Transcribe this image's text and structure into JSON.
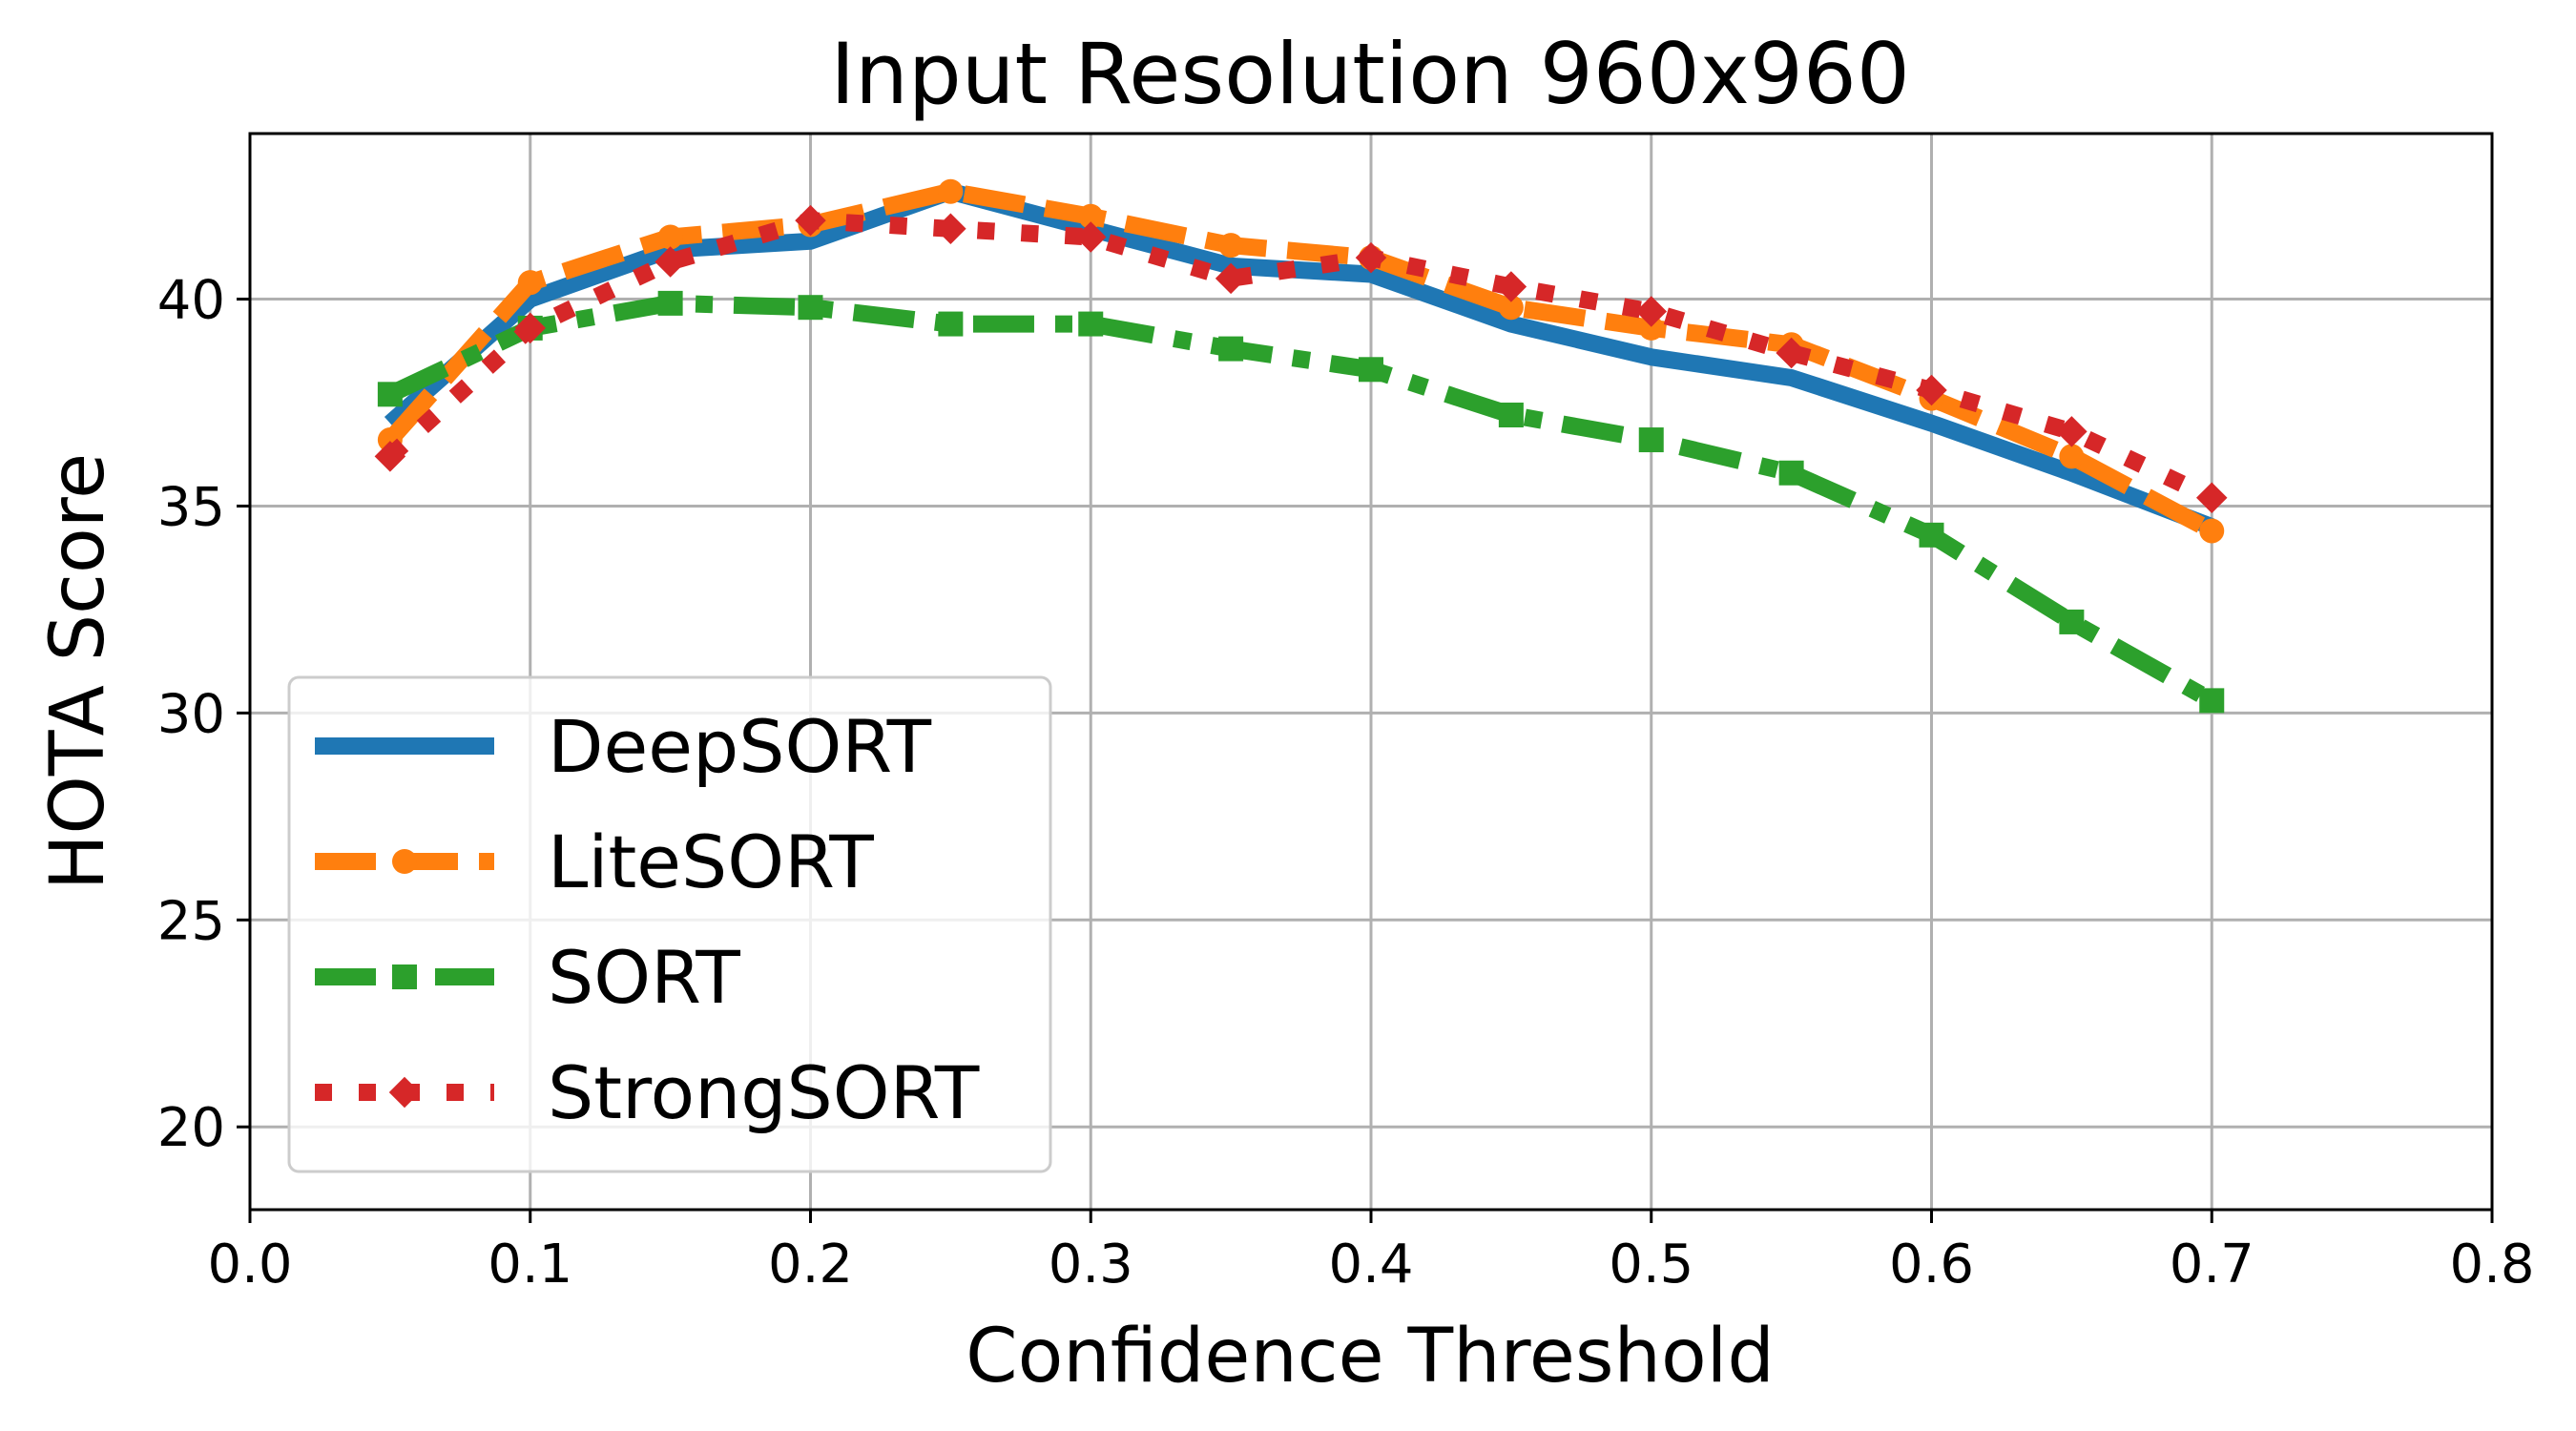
{
  "chart_data": {
    "type": "line",
    "title": "Input Resolution 960x960",
    "xlabel": "Confidence Threshold",
    "ylabel": "HOTA Score",
    "xlim": [
      0.0,
      0.8
    ],
    "ylim": [
      18,
      44
    ],
    "xticks": [
      0.0,
      0.1,
      0.2,
      0.3,
      0.4,
      0.5,
      0.6,
      0.7,
      0.8
    ],
    "xtick_labels": [
      "0.0",
      "0.1",
      "0.2",
      "0.3",
      "0.4",
      "0.5",
      "0.6",
      "0.7",
      "0.8"
    ],
    "yticks": [
      20,
      25,
      30,
      35,
      40
    ],
    "ytick_labels": [
      "20",
      "25",
      "30",
      "35",
      "40"
    ],
    "grid": true,
    "legend_position": "lower-left",
    "x": [
      0.05,
      0.1,
      0.15,
      0.2,
      0.25,
      0.3,
      0.35,
      0.4,
      0.45,
      0.5,
      0.55,
      0.6,
      0.65,
      0.7
    ],
    "series": [
      {
        "name": "DeepSORT",
        "color": "#1f77b4",
        "style": "solid",
        "marker": "none",
        "values": [
          37.0,
          40.0,
          41.2,
          41.4,
          42.6,
          41.7,
          40.8,
          40.6,
          39.4,
          38.6,
          38.1,
          37.0,
          35.8,
          34.5
        ]
      },
      {
        "name": "LiteSORT",
        "color": "#ff7f0e",
        "style": "dashed",
        "marker": "circle",
        "values": [
          36.6,
          40.4,
          41.5,
          41.8,
          42.6,
          42.0,
          41.3,
          41.0,
          39.8,
          39.3,
          38.9,
          37.6,
          36.2,
          34.4
        ]
      },
      {
        "name": "SORT",
        "color": "#2ca02c",
        "style": "dashdot",
        "marker": "square",
        "values": [
          37.7,
          39.3,
          39.9,
          39.8,
          39.4,
          39.4,
          38.8,
          38.3,
          37.2,
          36.6,
          35.8,
          34.3,
          32.2,
          30.3
        ]
      },
      {
        "name": "StrongSORT",
        "color": "#d62728",
        "style": "dotted",
        "marker": "diamond",
        "values": [
          36.2,
          39.3,
          40.9,
          41.9,
          41.7,
          41.5,
          40.5,
          41.0,
          40.3,
          39.7,
          38.7,
          37.8,
          36.8,
          35.2
        ]
      }
    ]
  }
}
